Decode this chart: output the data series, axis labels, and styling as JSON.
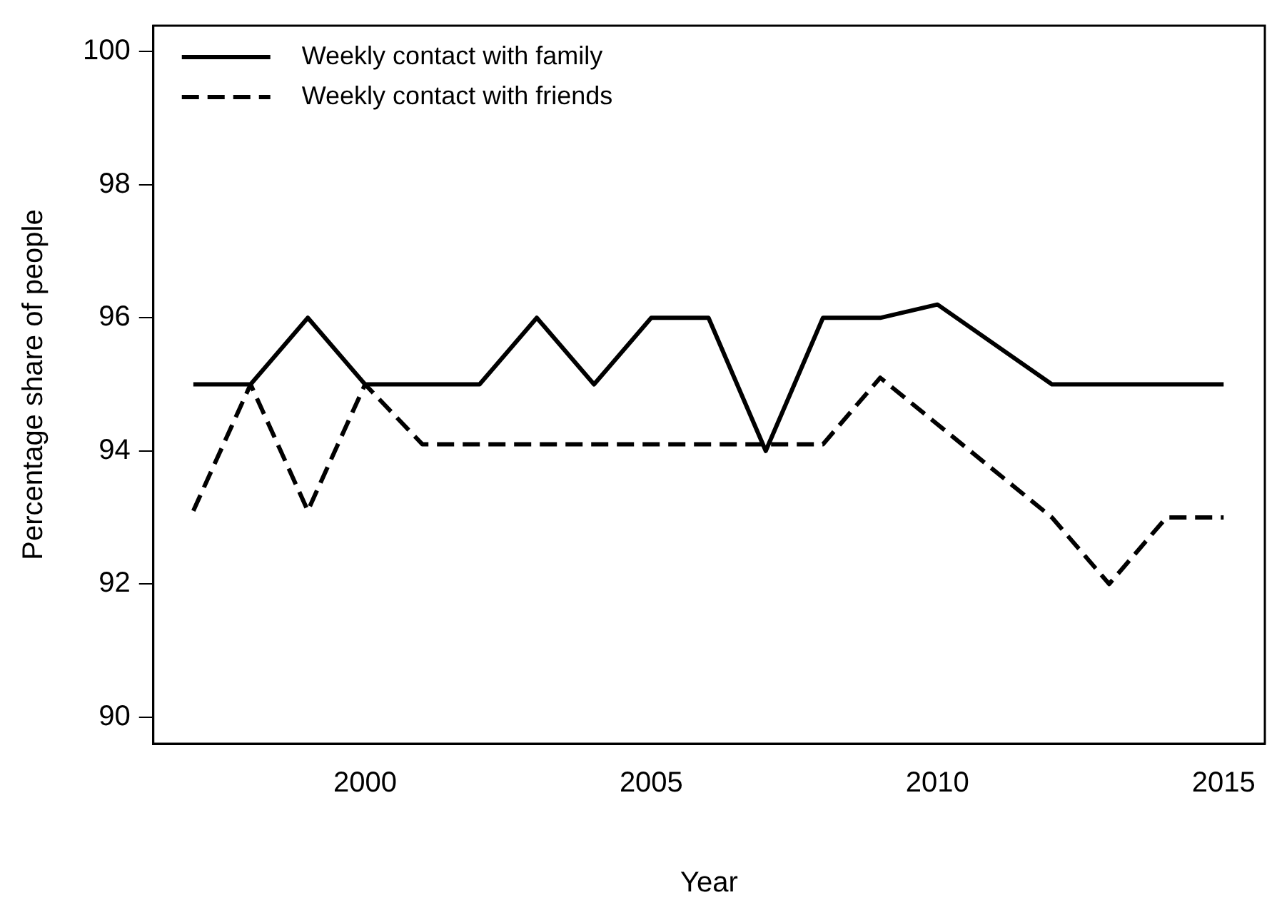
{
  "chart_data": {
    "type": "line",
    "xlabel": "Year",
    "ylabel": "Percentage share of people",
    "xlim": [
      1996.3,
      2015.72
    ],
    "xticks": [
      2000,
      2005,
      2010,
      2015
    ],
    "ylim": [
      89.6,
      100.39
    ],
    "yticks": [
      90,
      92,
      94,
      96,
      98,
      100
    ],
    "grid": false,
    "legend": "top left",
    "marker": "none",
    "series": [
      {
        "name": "Weekly contact with family",
        "color": "#000000",
        "line_style": "solid",
        "x": [
          1997,
          1998,
          1999,
          2000,
          2001,
          2002,
          2003,
          2004,
          2005,
          2006,
          2007,
          2008,
          2009,
          2010,
          2012,
          2013,
          2014,
          2015
        ],
        "values": [
          95,
          95,
          96,
          95,
          95,
          95,
          96,
          95,
          96,
          96,
          94,
          96,
          96,
          96.2,
          95,
          95,
          95,
          95
        ]
      },
      {
        "name": "Weekly contact with friends",
        "color": "#000000",
        "line_style": "dashed",
        "x": [
          1997,
          1998,
          1999,
          2000,
          2001,
          2002,
          2003,
          2004,
          2005,
          2006,
          2007,
          2008,
          2009,
          2012,
          2013,
          2014,
          2015
        ],
        "values": [
          93.1,
          95,
          93.1,
          95,
          94.1,
          94.1,
          94.1,
          94.1,
          94.1,
          94.1,
          94.1,
          94.1,
          95.1,
          93,
          92,
          93,
          93
        ]
      }
    ]
  }
}
